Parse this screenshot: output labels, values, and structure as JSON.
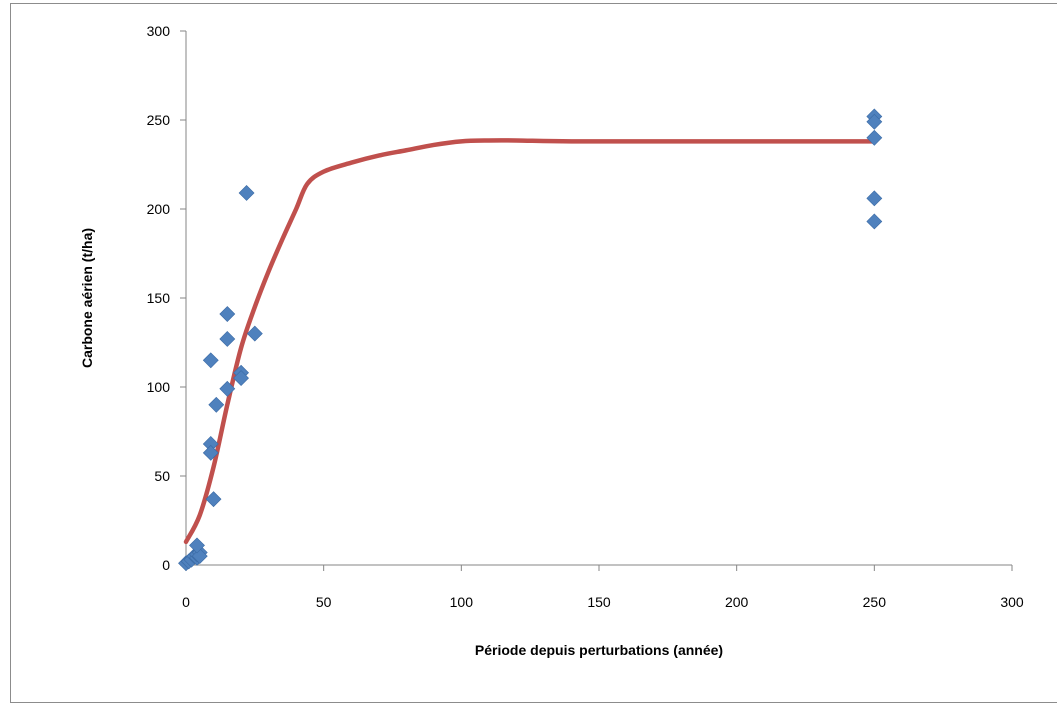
{
  "chart_data": {
    "type": "scatter",
    "title": "",
    "xlabel": "Période depuis perturbations  (année)",
    "ylabel": "Carbone   aérien  (t/ha)",
    "xlim": [
      0,
      300
    ],
    "ylim": [
      0,
      300
    ],
    "xticks": [
      0,
      50,
      100,
      150,
      200,
      250,
      300
    ],
    "yticks": [
      0,
      50,
      100,
      150,
      200,
      250,
      300
    ],
    "grid": false,
    "legend": "none",
    "colors": {
      "points": "#4f81bd",
      "curve": "#c0504d",
      "axis": "#868686"
    },
    "series": [
      {
        "type": "scatter",
        "marker": "diamond",
        "points": [
          {
            "x": 0,
            "y": 1
          },
          {
            "x": 1,
            "y": 2
          },
          {
            "x": 2,
            "y": 3
          },
          {
            "x": 3,
            "y": 5
          },
          {
            "x": 4,
            "y": 4
          },
          {
            "x": 4,
            "y": 6
          },
          {
            "x": 5,
            "y": 7
          },
          {
            "x": 5,
            "y": 5
          },
          {
            "x": 4,
            "y": 11
          },
          {
            "x": 9,
            "y": 115
          },
          {
            "x": 9,
            "y": 68
          },
          {
            "x": 9,
            "y": 63
          },
          {
            "x": 10,
            "y": 37
          },
          {
            "x": 11,
            "y": 90
          },
          {
            "x": 15,
            "y": 141
          },
          {
            "x": 15,
            "y": 127
          },
          {
            "x": 15,
            "y": 99
          },
          {
            "x": 20,
            "y": 108
          },
          {
            "x": 20,
            "y": 105
          },
          {
            "x": 22,
            "y": 209
          },
          {
            "x": 25,
            "y": 130
          },
          {
            "x": 250,
            "y": 252
          },
          {
            "x": 250,
            "y": 249
          },
          {
            "x": 250,
            "y": 240
          },
          {
            "x": 250,
            "y": 206
          },
          {
            "x": 250,
            "y": 193
          }
        ]
      },
      {
        "type": "line",
        "points": [
          {
            "x": 0,
            "y": 13
          },
          {
            "x": 5,
            "y": 28
          },
          {
            "x": 10,
            "y": 55
          },
          {
            "x": 15,
            "y": 90
          },
          {
            "x": 20,
            "y": 122
          },
          {
            "x": 25,
            "y": 145
          },
          {
            "x": 30,
            "y": 165
          },
          {
            "x": 35,
            "y": 183
          },
          {
            "x": 40,
            "y": 200
          },
          {
            "x": 44,
            "y": 214
          },
          {
            "x": 50,
            "y": 221
          },
          {
            "x": 60,
            "y": 226
          },
          {
            "x": 70,
            "y": 230
          },
          {
            "x": 80,
            "y": 233
          },
          {
            "x": 90,
            "y": 236
          },
          {
            "x": 100,
            "y": 238
          },
          {
            "x": 110,
            "y": 238.5
          },
          {
            "x": 120,
            "y": 238.5
          },
          {
            "x": 140,
            "y": 238
          },
          {
            "x": 180,
            "y": 238
          },
          {
            "x": 220,
            "y": 238
          },
          {
            "x": 250,
            "y": 238
          }
        ]
      }
    ]
  }
}
